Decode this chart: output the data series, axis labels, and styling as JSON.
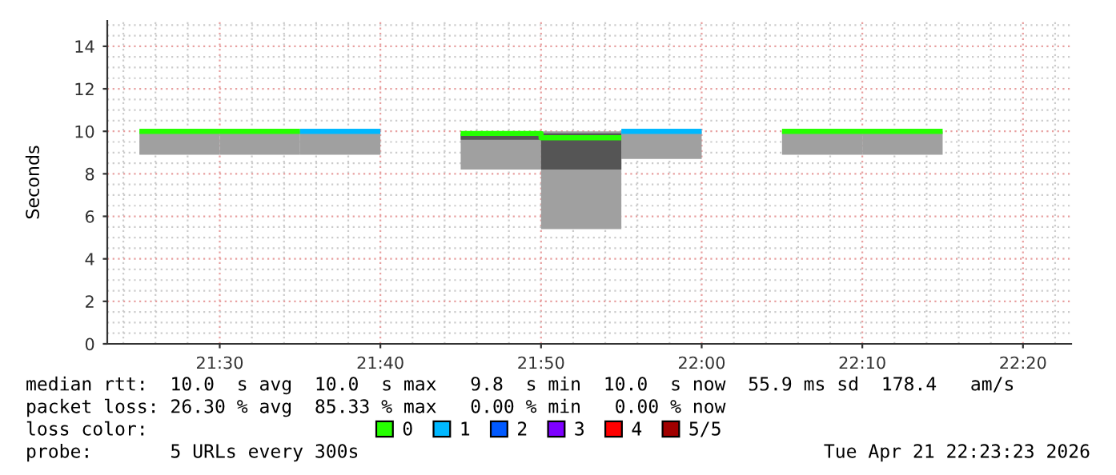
{
  "chart_data": {
    "type": "bar",
    "ylabel": "Seconds",
    "legend_title": "loss color:",
    "legend": "bottom",
    "grid": true,
    "xlim": [
      "2026-04-21T21:23",
      "2026-04-21T22:23"
    ],
    "xticks": [
      {
        "value": "2026-04-21T21:30",
        "label": "21:30"
      },
      {
        "value": "2026-04-21T21:40",
        "label": "21:40"
      },
      {
        "value": "2026-04-21T21:50",
        "label": "21:50"
      },
      {
        "value": "2026-04-21T22:00",
        "label": "22:00"
      },
      {
        "value": "2026-04-21T22:10",
        "label": "22:10"
      },
      {
        "value": "2026-04-21T22:20",
        "label": "22:20"
      }
    ],
    "ylim": [
      0,
      15.2
    ],
    "yticks": [
      0,
      2,
      4,
      6,
      8,
      10,
      12,
      14
    ],
    "series": [
      {
        "color": "#a0a0a0",
        "x": [
          "2026-04-21T21:25",
          "2026-04-21T21:30",
          "2026-04-21T21:35",
          "2026-04-21T21:40",
          "2026-04-21T21:45",
          "2026-04-21T21:50",
          "2026-04-21T21:55",
          "2026-04-21T22:00",
          "2026-04-21T22:05",
          "2026-04-21T22:10"
        ],
        "base": [
          8.9,
          8.9,
          8.9,
          null,
          8.2,
          5.4,
          8.7,
          null,
          8.9,
          8.9
        ],
        "values": [
          1.1,
          1.1,
          1.1,
          null,
          1.7,
          4.6,
          1.3,
          null,
          1.1,
          1.1
        ]
      },
      {
        "type": "bar",
        "color": "#555555",
        "x": [
          "2026-04-21T21:45",
          "2026-04-21T21:50"
        ],
        "base": [
          9.6,
          8.2
        ],
        "values": [
          0.3,
          1.7
        ]
      },
      {
        "type": "line",
        "name": "0",
        "color": "#26ff00",
        "x": [
          "2026-04-21T21:25",
          "2026-04-21T21:35",
          "2026-04-21T21:40",
          "2026-04-21T21:45",
          "2026-04-21T21:50",
          "2026-04-21T21:50",
          "2026-04-21T21:55",
          "2026-04-21T22:00",
          "2026-04-21T22:05",
          "2026-04-21T22:15"
        ],
        "values": [
          10,
          10,
          null,
          9.9,
          9.9,
          9.7,
          9.7,
          null,
          10,
          10
        ]
      },
      {
        "type": "line",
        "name": "1",
        "color": "#00b8ff",
        "x": [
          "2026-04-21T21:35",
          "2026-04-21T21:40",
          "2026-04-21T21:45",
          "2026-04-21T21:55",
          "2026-04-21T22:00"
        ],
        "values": [
          10,
          10,
          null,
          10,
          10
        ]
      },
      {
        "type": "line",
        "name": "2",
        "color": "#0059ff"
      },
      {
        "type": "line",
        "name": "3",
        "color": "#7e00ff"
      },
      {
        "type": "line",
        "name": "4",
        "color": "#ff0000"
      },
      {
        "type": "line",
        "name": "5/5",
        "color": "#a10000"
      }
    ],
    "annotations": [
      "median rtt:  10.0  s avg  10.0  s max   9.8  s min  10.0  s now  55.9 ms sd  178.4   am/s",
      "packet loss: 26.30 % avg  85.33 % max   0.00 % min   0.00 % now",
      "probe:       5 URLs every 300s",
      "Tue Apr 21 22:23:23 2026"
    ]
  }
}
